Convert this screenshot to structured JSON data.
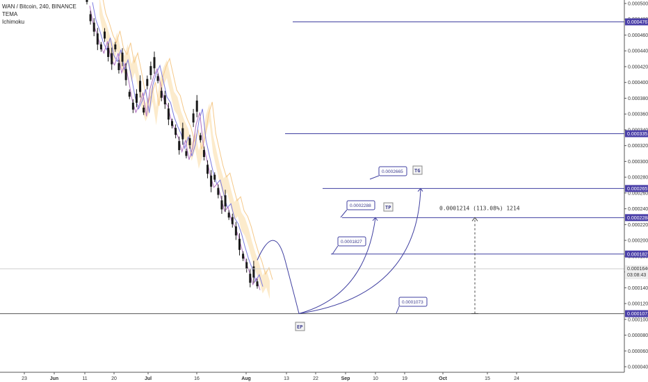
{
  "legend": {
    "title": "WAN / Bitcoin, 240, BINANCE",
    "indicator1": "TEMA",
    "indicator2": "Ichimoku"
  },
  "colors": {
    "line": "#3f3fa0",
    "tema": "#b070c0",
    "kijun": "#7a7ae0",
    "cloud": "#fce9c6",
    "cloudBorder": "#f5c98a",
    "candle": "#1a1a1a",
    "labelBg": "#4a3fa8",
    "currentBg": "#eeeeee"
  },
  "chart_data": {
    "type": "line",
    "title": "WAN / Bitcoin, 240, BINANCE",
    "y_ticks": [
      "0.0005000",
      "0.0004800",
      "0.0004600",
      "0.0004400",
      "0.0004200",
      "0.0004000",
      "0.0003800",
      "0.0003600",
      "0.0003400",
      "0.0003200",
      "0.0003000",
      "0.0002800",
      "0.0002600",
      "0.0002400",
      "0.0002200",
      "0.0002000",
      "0.0001800",
      "0.0001600",
      "0.0001400",
      "0.0001200",
      "0.0001000",
      "0.0000800",
      "0.0000600",
      "0.0000400"
    ],
    "y_tick_values": [
      0.0005,
      0.00048,
      0.00046,
      0.00044,
      0.00042,
      0.0004,
      0.00038,
      0.00036,
      0.00034,
      0.00032,
      0.0003,
      0.00028,
      0.00026,
      0.00024,
      0.00022,
      0.0002,
      0.00018,
      0.00016,
      0.00014,
      0.00012,
      0.0001,
      8e-05,
      6e-05,
      4e-05
    ],
    "x_ticks": [
      "23",
      "Jun",
      "11",
      "20",
      "Jul",
      "16",
      "Aug",
      "13",
      "22",
      "Sep",
      "10",
      "19",
      "Oct",
      "15",
      "24"
    ],
    "price_closes": [
      0.000505,
      0.000482,
      0.00047,
      0.000455,
      0.000445,
      0.00046,
      0.000438,
      0.00043,
      0.000445,
      0.00042,
      0.000432,
      0.00041,
      0.000385,
      0.00037,
      0.00038,
      0.000395,
      0.000365,
      0.0004,
      0.000415,
      0.000425,
      0.000405,
      0.000385,
      0.000378,
      0.00036,
      0.000348,
      0.000338,
      0.00032,
      0.000335,
      0.00031,
      0.000325,
      0.000355,
      0.00037,
      0.00033,
      0.00031,
      0.00029,
      0.000275,
      0.00028,
      0.000262,
      0.000245,
      0.00025,
      0.000232,
      0.000225,
      0.000212,
      0.000195,
      0.00018,
      0.000168,
      0.000152,
      0.00016,
      0.000145
    ],
    "horizontal_levels": [
      {
        "label": "0.0004767",
        "value": 0.0004767
      },
      {
        "label": "0.0003351",
        "value": 0.0003351
      },
      {
        "label": "0.0002657",
        "value": 0.0002657
      },
      {
        "label": "0.0002288",
        "value": 0.0002288
      },
      {
        "label": "0.0001827",
        "value": 0.0001827
      },
      {
        "label": "0.0001072",
        "value": 0.0001072
      }
    ],
    "current_price": {
      "label": "0.0001640",
      "value": 0.000164,
      "countdown": "03:08:43"
    },
    "callouts": [
      {
        "label": "0.0002665",
        "value": 0.0002665
      },
      {
        "label": "0.0002288",
        "value": 0.0002288
      },
      {
        "label": "0.0001827",
        "value": 0.0001827
      },
      {
        "label": "0.0001073",
        "value": 0.0001073
      }
    ],
    "tags": [
      {
        "label": "TG",
        "value": 0.0002657
      },
      {
        "label": "TP",
        "value": 0.0002288
      },
      {
        "label": "EP",
        "value": 0.0001073
      }
    ],
    "measure": {
      "text": "0.0001214 (113.08%) 1214",
      "from": 0.0001073,
      "to": 0.0002288
    }
  }
}
